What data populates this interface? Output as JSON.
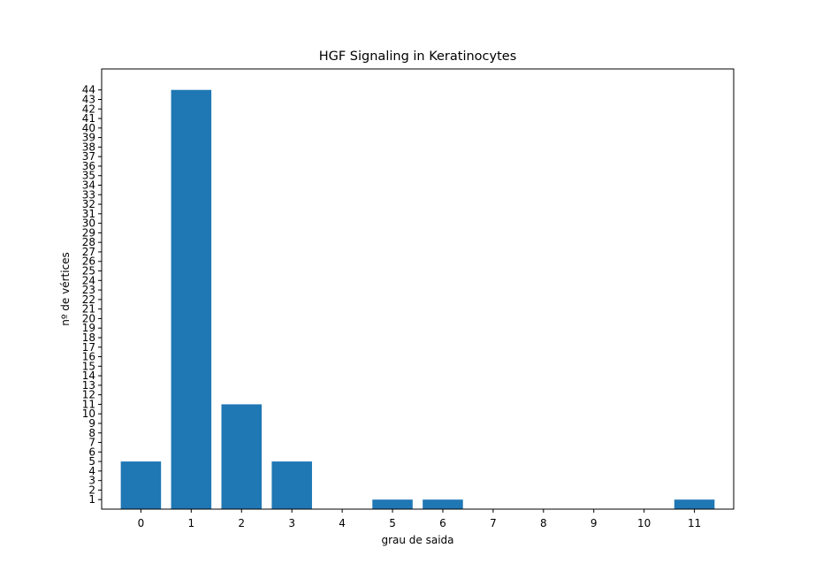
{
  "chart_data": {
    "type": "bar",
    "title": "HGF Signaling in Keratinocytes",
    "xlabel": "grau de saida",
    "ylabel": "nº de vértices",
    "categories": [
      "0",
      "1",
      "2",
      "3",
      "4",
      "5",
      "6",
      "7",
      "8",
      "9",
      "10",
      "11"
    ],
    "values": [
      5,
      44,
      11,
      5,
      0,
      1,
      1,
      0,
      0,
      0,
      0,
      1
    ],
    "y_ticks": [
      1,
      2,
      3,
      4,
      5,
      6,
      7,
      8,
      9,
      10,
      11,
      12,
      13,
      14,
      15,
      16,
      17,
      18,
      19,
      20,
      21,
      22,
      23,
      24,
      25,
      26,
      27,
      28,
      29,
      30,
      31,
      32,
      33,
      34,
      35,
      36,
      37,
      38,
      39,
      40,
      41,
      42,
      43,
      44
    ],
    "ylim": [
      0,
      46.2
    ],
    "grid": false,
    "legend": "none",
    "bar_color": "#1f77b4"
  }
}
